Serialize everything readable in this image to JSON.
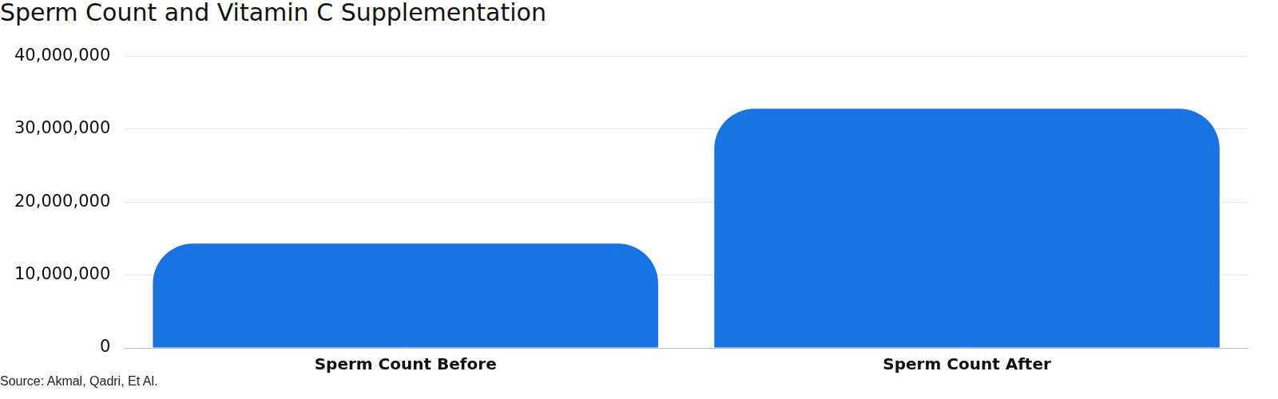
{
  "chart_data": {
    "type": "bar",
    "title": "Sperm Count and Vitamin C Supplementation",
    "source": "Source: Akmal, Qadri, Et Al.",
    "categories": [
      "Sperm Count Before",
      "Sperm Count After"
    ],
    "values": [
      14300000,
      32800000
    ],
    "color": "#1a73e3",
    "ylim": [
      0,
      40000000
    ],
    "yticks": [
      0,
      {
        "value": 10000000,
        "label": "10,000,000"
      },
      {
        "value": 20000000,
        "label": "20,000,000"
      },
      {
        "value": 30000000,
        "label": "30,000,000"
      },
      {
        "value": 40000000,
        "label": "40,000,000"
      }
    ],
    "grid": true
  }
}
